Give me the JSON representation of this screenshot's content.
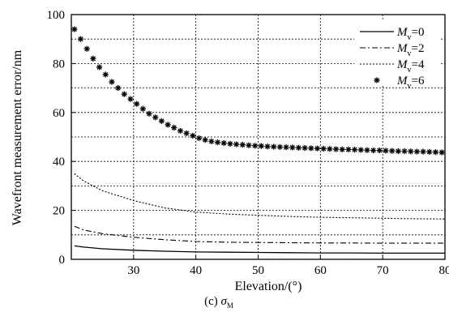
{
  "chart_data": {
    "type": "line",
    "xlabel": "Elevation/(°)",
    "ylabel": "Wavefront measurement error/nm",
    "caption_prefix": "(c) ",
    "caption_symbol": "σ",
    "caption_subscript": "M",
    "xlim": [
      20,
      80
    ],
    "ylim": [
      0,
      100
    ],
    "xticks": [
      30,
      40,
      50,
      60,
      70,
      80
    ],
    "yticks": [
      0,
      20,
      40,
      60,
      80,
      100
    ],
    "grid": true,
    "legend_position": "top-right",
    "series": [
      {
        "name_var": "M",
        "name_sub": "v",
        "name_val": "=0",
        "style": "solid",
        "x": [
          20.5,
          22,
          25,
          30,
          35,
          40,
          45,
          50,
          55,
          60,
          65,
          70,
          75,
          80
        ],
        "y": [
          5.5,
          5.0,
          4.3,
          3.7,
          3.3,
          3.0,
          2.9,
          2.8,
          2.7,
          2.6,
          2.6,
          2.5,
          2.5,
          2.5
        ]
      },
      {
        "name_var": "M",
        "name_sub": "v",
        "name_val": "=2",
        "style": "dashdot",
        "x": [
          20.5,
          22,
          25,
          30,
          35,
          40,
          45,
          50,
          55,
          60,
          65,
          70,
          75,
          80
        ],
        "y": [
          13.5,
          12.0,
          10.5,
          9.0,
          8.0,
          7.3,
          7.0,
          6.9,
          6.8,
          6.7,
          6.7,
          6.6,
          6.6,
          6.6
        ]
      },
      {
        "name_var": "M",
        "name_sub": "v",
        "name_val": "=4",
        "style": "dotted",
        "x": [
          20.5,
          22,
          25,
          30,
          35,
          40,
          45,
          50,
          55,
          60,
          65,
          70,
          75,
          80
        ],
        "y": [
          35,
          32,
          28,
          24,
          21,
          19.3,
          18.5,
          18.0,
          17.5,
          17.2,
          17.0,
          16.8,
          16.6,
          16.5
        ]
      },
      {
        "name_var": "M",
        "name_sub": "v",
        "name_val": "=6",
        "style": "star-markers",
        "x": [
          20.5,
          21.5,
          22.5,
          23.5,
          24.5,
          25.5,
          26.5,
          27.5,
          28.5,
          29.5,
          30.5,
          31.5,
          32.5,
          33.5,
          34.5,
          35.5,
          36.5,
          37.5,
          38.5,
          39.5,
          40.5,
          41.5,
          42.5,
          43.5,
          44.5,
          45.5,
          46.5,
          47.5,
          48.5,
          49.5,
          50.5,
          51.5,
          52.5,
          53.5,
          54.5,
          55.5,
          56.5,
          57.5,
          58.5,
          59.5,
          60.5,
          61.5,
          62.5,
          63.5,
          64.5,
          65.5,
          66.5,
          67.5,
          68.5,
          69.5,
          70.5,
          71.5,
          72.5,
          73.5,
          74.5,
          75.5,
          76.5,
          77.5,
          78.5,
          79.5
        ],
        "y": [
          94.0,
          90.0,
          86.0,
          82.0,
          78.5,
          75.5,
          72.5,
          70.0,
          67.5,
          65.5,
          63.5,
          61.5,
          59.5,
          58.0,
          56.5,
          55.0,
          53.8,
          52.5,
          51.5,
          50.5,
          49.5,
          48.8,
          48.2,
          47.8,
          47.5,
          47.2,
          47.0,
          46.8,
          46.6,
          46.4,
          46.3,
          46.1,
          46.0,
          45.9,
          45.8,
          45.7,
          45.6,
          45.5,
          45.4,
          45.3,
          45.2,
          45.1,
          45.0,
          44.9,
          44.9,
          44.8,
          44.7,
          44.6,
          44.5,
          44.5,
          44.4,
          44.3,
          44.2,
          44.2,
          44.1,
          44.0,
          44.0,
          43.9,
          43.8,
          43.7
        ]
      }
    ]
  }
}
